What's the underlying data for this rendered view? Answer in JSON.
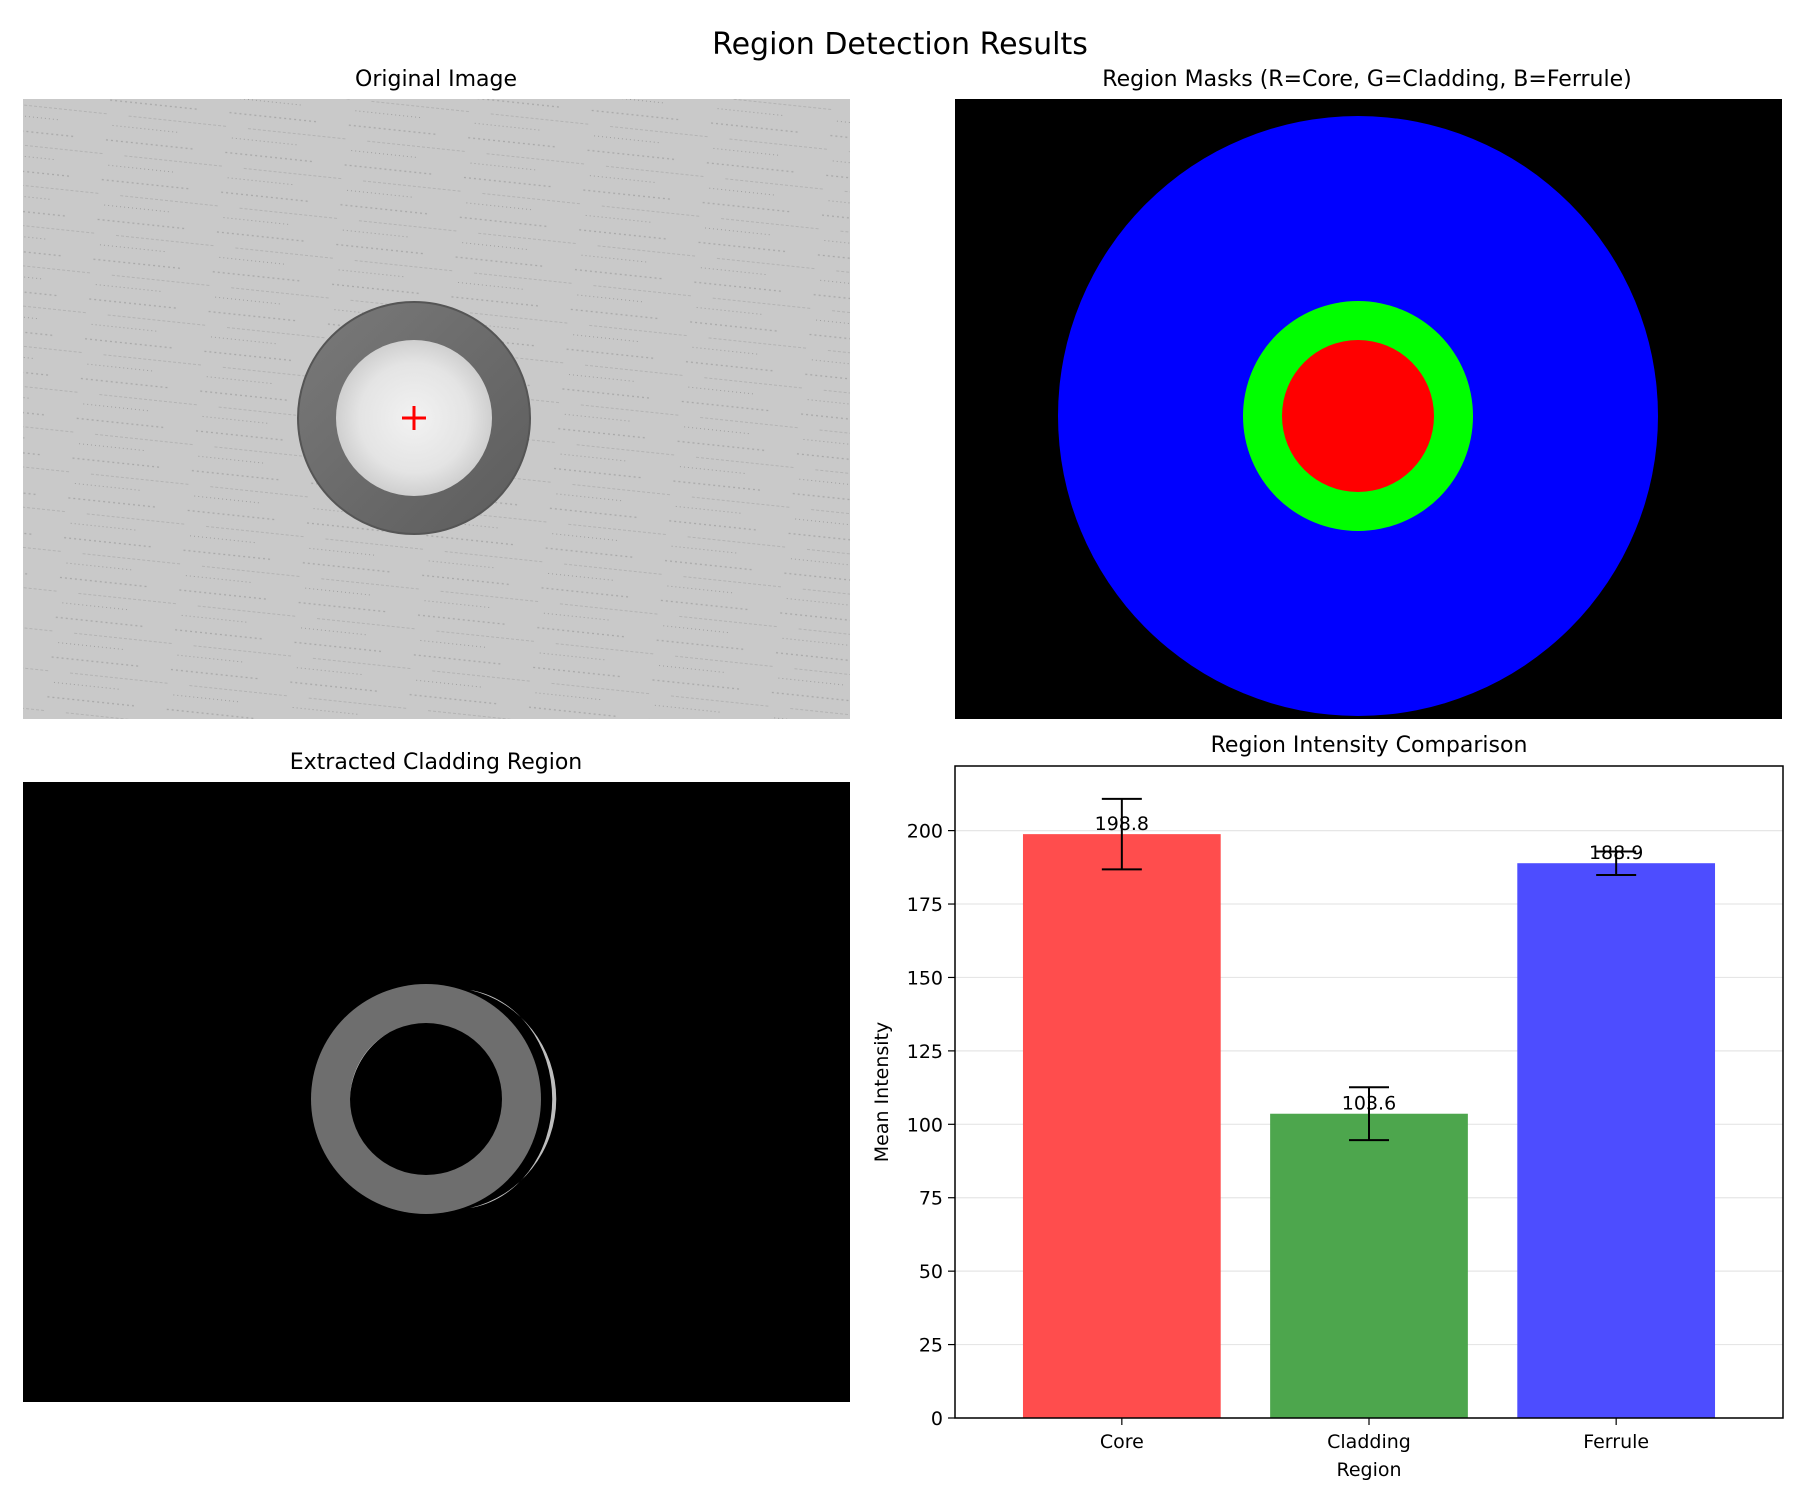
{
  "figure_title": "Region Detection Results",
  "panels": {
    "original": {
      "title": "Original Image"
    },
    "masks": {
      "title": "Region Masks (R=Core, G=Cladding, B=Ferrule)"
    },
    "extracted": {
      "title": "Extracted Cladding Region"
    }
  },
  "colors": {
    "core": "#ff0000",
    "cladding": "#00ff00",
    "ferrule": "#0000ff",
    "bar_core": "#ff4d4d",
    "bar_cladding": "#4da64d",
    "bar_ferrule": "#4d4dff",
    "center_marker": "#ff0000"
  },
  "chart_data": {
    "type": "bar",
    "title": "Region Intensity Comparison",
    "xlabel": "Region",
    "ylabel": "Mean Intensity",
    "categories": [
      "Core",
      "Cladding",
      "Ferrule"
    ],
    "values": [
      198.8,
      103.6,
      188.9
    ],
    "value_labels": [
      "198.8",
      "103.6",
      "188.9"
    ],
    "errors": [
      12,
      9,
      4
    ],
    "ylim": [
      0,
      222
    ],
    "yticks": [
      0,
      25,
      50,
      75,
      100,
      125,
      150,
      175,
      200
    ],
    "grid": "y"
  }
}
